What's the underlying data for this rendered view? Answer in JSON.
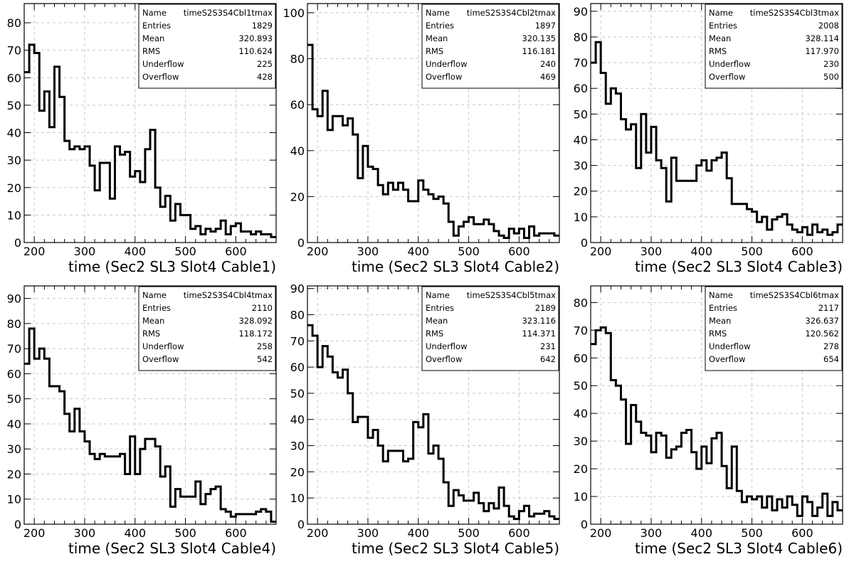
{
  "chart_data": [
    {
      "type": "histogram",
      "xlabel": "time (Sec2 SL3 Slot4 Cable1)",
      "ylabel": "",
      "xlim": [
        180,
        680
      ],
      "ylim": [
        0,
        87
      ],
      "xticks": [
        200,
        300,
        400,
        500,
        600
      ],
      "yticks": [
        0,
        10,
        20,
        30,
        40,
        50,
        60,
        70,
        80
      ],
      "grid": true,
      "bin_edges_start": 180,
      "bin_width": 10,
      "values": [
        62,
        72,
        69,
        48,
        55,
        42,
        64,
        53,
        37,
        34,
        35,
        34,
        35,
        28,
        19,
        29,
        29,
        16,
        35,
        32,
        33,
        24,
        26,
        22,
        34,
        41,
        20,
        13,
        17,
        8,
        14,
        10,
        10,
        5,
        6,
        3,
        5,
        4,
        5,
        8,
        3,
        6,
        7,
        4,
        4,
        3,
        4,
        3,
        3,
        2
      ],
      "stats": {
        "labels": [
          "Name",
          "Entries",
          "Mean",
          "RMS",
          "Underflow",
          "Overflow"
        ],
        "values": [
          "timeS2S3S4Cbl1tmax",
          "1829",
          "320.893",
          "110.624",
          "225",
          "428"
        ]
      }
    },
    {
      "type": "histogram",
      "xlabel": "time (Sec2 SL3 Slot4 Cable2)",
      "ylabel": "",
      "xlim": [
        180,
        680
      ],
      "ylim": [
        0,
        104
      ],
      "xticks": [
        200,
        300,
        400,
        500,
        600
      ],
      "yticks": [
        0,
        20,
        40,
        60,
        80,
        100
      ],
      "grid": true,
      "bin_edges_start": 180,
      "bin_width": 10,
      "values": [
        86,
        58,
        55,
        66,
        49,
        55,
        55,
        51,
        54,
        47,
        28,
        42,
        33,
        32,
        25,
        21,
        26,
        23,
        26,
        23,
        18,
        18,
        27,
        23,
        21,
        19,
        20,
        17,
        9,
        3,
        7,
        9,
        11,
        8,
        8,
        10,
        8,
        5,
        3,
        2,
        6,
        4,
        6,
        2,
        7,
        3,
        4,
        4,
        4,
        3
      ],
      "stats": {
        "labels": [
          "Name",
          "Entries",
          "Mean",
          "RMS",
          "Underflow",
          "Overflow"
        ],
        "values": [
          "timeS2S3S4Cbl2tmax",
          "1897",
          "320.135",
          "116.181",
          "240",
          "469"
        ]
      }
    },
    {
      "type": "histogram",
      "xlabel": "time (Sec2 SL3 Slot4 Cable3)",
      "ylabel": "",
      "xlim": [
        180,
        680
      ],
      "ylim": [
        0,
        93
      ],
      "xticks": [
        200,
        300,
        400,
        500,
        600
      ],
      "yticks": [
        0,
        10,
        20,
        30,
        40,
        50,
        60,
        70,
        80,
        90
      ],
      "grid": true,
      "bin_edges_start": 180,
      "bin_width": 10,
      "values": [
        70,
        78,
        66,
        54,
        60,
        58,
        48,
        44,
        46,
        29,
        50,
        35,
        45,
        32,
        29,
        16,
        33,
        24,
        24,
        24,
        24,
        30,
        32,
        28,
        32,
        33,
        35,
        25,
        15,
        15,
        15,
        13,
        12,
        8,
        10,
        5,
        9,
        10,
        11,
        7,
        5,
        4,
        6,
        3,
        7,
        4,
        5,
        3,
        4,
        7
      ],
      "stats": {
        "labels": [
          "Name",
          "Entries",
          "Mean",
          "RMS",
          "Underflow",
          "Overflow"
        ],
        "values": [
          "timeS2S3S4Cbl3tmax",
          "2008",
          "328.114",
          "117.970",
          "230",
          "500"
        ]
      }
    },
    {
      "type": "histogram",
      "xlabel": "time (Sec2 SL3 Slot4 Cable4)",
      "ylabel": "",
      "xlim": [
        180,
        680
      ],
      "ylim": [
        0,
        95
      ],
      "xticks": [
        200,
        300,
        400,
        500,
        600
      ],
      "yticks": [
        0,
        10,
        20,
        30,
        40,
        50,
        60,
        70,
        80,
        90
      ],
      "grid": true,
      "bin_edges_start": 180,
      "bin_width": 10,
      "values": [
        64,
        78,
        66,
        70,
        66,
        55,
        55,
        53,
        44,
        37,
        46,
        37,
        33,
        28,
        26,
        28,
        27,
        27,
        27,
        28,
        20,
        35,
        20,
        30,
        34,
        34,
        31,
        19,
        23,
        7,
        14,
        11,
        11,
        11,
        17,
        8,
        12,
        14,
        15,
        6,
        5,
        3,
        4,
        4,
        4,
        4,
        5,
        6,
        5,
        1
      ],
      "stats": {
        "labels": [
          "Name",
          "Entries",
          "Mean",
          "RMS",
          "Underflow",
          "Overflow"
        ],
        "values": [
          "timeS2S3S4Cbl4tmax",
          "2110",
          "328.092",
          "118.172",
          "258",
          "542"
        ]
      }
    },
    {
      "type": "histogram",
      "xlabel": "time (Sec2 SL3 Slot4 Cable5)",
      "ylabel": "",
      "xlim": [
        180,
        680
      ],
      "ylim": [
        0,
        91
      ],
      "xticks": [
        200,
        300,
        400,
        500,
        600
      ],
      "yticks": [
        0,
        10,
        20,
        30,
        40,
        50,
        60,
        70,
        80,
        90
      ],
      "grid": true,
      "bin_edges_start": 180,
      "bin_width": 10,
      "values": [
        76,
        72,
        60,
        68,
        64,
        58,
        56,
        59,
        50,
        39,
        41,
        41,
        33,
        36,
        30,
        24,
        28,
        28,
        28,
        24,
        25,
        39,
        37,
        42,
        27,
        30,
        25,
        16,
        7,
        13,
        11,
        9,
        9,
        12,
        8,
        5,
        8,
        6,
        14,
        7,
        3,
        2,
        5,
        7,
        3,
        4,
        4,
        5,
        3,
        2
      ],
      "stats": {
        "labels": [
          "Name",
          "Entries",
          "Mean",
          "RMS",
          "Underflow",
          "Overflow"
        ],
        "values": [
          "timeS2S3S4Cbl5tmax",
          "2189",
          "323.116",
          "114.371",
          "231",
          "642"
        ]
      }
    },
    {
      "type": "histogram",
      "xlabel": "time (Sec2 SL3 Slot4 Cable6)",
      "ylabel": "",
      "xlim": [
        180,
        680
      ],
      "ylim": [
        0,
        86
      ],
      "xticks": [
        200,
        300,
        400,
        500,
        600
      ],
      "yticks": [
        0,
        10,
        20,
        30,
        40,
        50,
        60,
        70,
        80
      ],
      "grid": true,
      "bin_edges_start": 180,
      "bin_width": 10,
      "values": [
        65,
        70,
        71,
        69,
        52,
        50,
        45,
        29,
        43,
        37,
        33,
        32,
        26,
        33,
        32,
        24,
        27,
        28,
        33,
        34,
        26,
        20,
        28,
        22,
        31,
        33,
        21,
        13,
        28,
        12,
        8,
        10,
        9,
        10,
        6,
        10,
        5,
        9,
        6,
        10,
        7,
        3,
        10,
        8,
        3,
        6,
        11,
        3,
        8,
        5
      ],
      "stats": {
        "labels": [
          "Name",
          "Entries",
          "Mean",
          "RMS",
          "Underflow",
          "Overflow"
        ],
        "values": [
          "timeS2S3S4Cbl6tmax",
          "2117",
          "326.637",
          "120.562",
          "278",
          "654"
        ]
      }
    }
  ]
}
